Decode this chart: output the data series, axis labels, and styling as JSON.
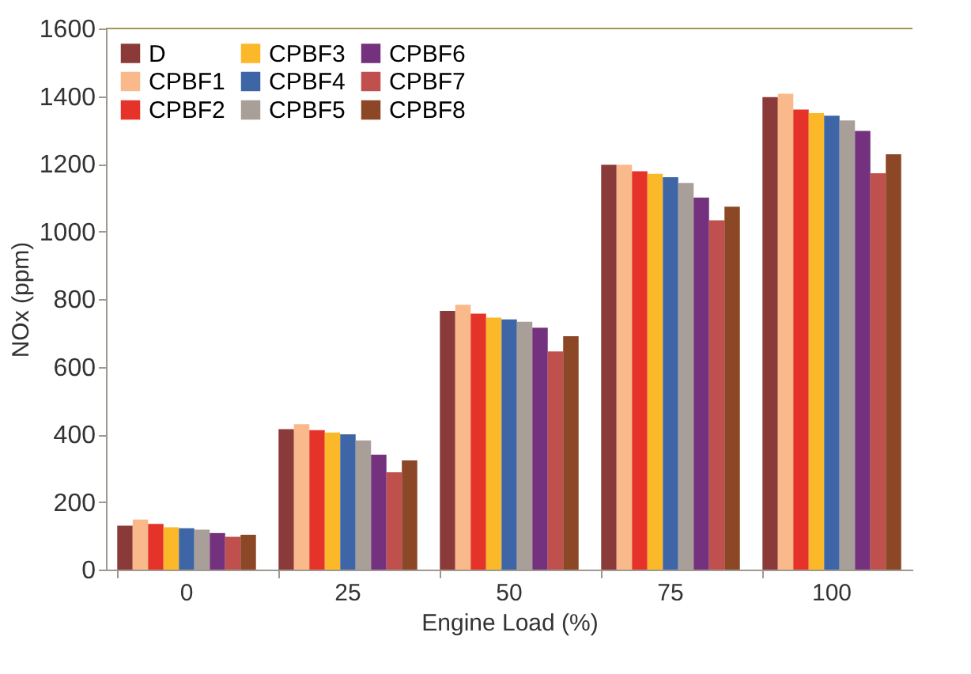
{
  "chart_data": {
    "type": "bar",
    "xlabel": "Engine Load (%)",
    "ylabel": "NOx (ppm)",
    "categories": [
      "0",
      "25",
      "50",
      "75",
      "100"
    ],
    "series": [
      {
        "name": "D",
        "color": "#8b3a3a",
        "values": [
          130,
          415,
          765,
          1197,
          1397
        ]
      },
      {
        "name": "CPBF1",
        "color": "#f9b98a",
        "values": [
          148,
          430,
          783,
          1197,
          1407
        ]
      },
      {
        "name": "CPBF2",
        "color": "#e5332a",
        "values": [
          135,
          412,
          757,
          1178,
          1360
        ]
      },
      {
        "name": "CPBF3",
        "color": "#fbb829",
        "values": [
          125,
          405,
          745,
          1170,
          1350
        ]
      },
      {
        "name": "CPBF4",
        "color": "#3e65a5",
        "values": [
          122,
          400,
          740,
          1160,
          1342
        ]
      },
      {
        "name": "CPBF5",
        "color": "#a89f99",
        "values": [
          118,
          382,
          733,
          1143,
          1328
        ]
      },
      {
        "name": "CPBF6",
        "color": "#74317e",
        "values": [
          108,
          340,
          715,
          1100,
          1297
        ]
      },
      {
        "name": "CPBF7",
        "color": "#bf504d",
        "values": [
          97,
          288,
          645,
          1033,
          1172
        ]
      },
      {
        "name": "CPBF8",
        "color": "#8b4726",
        "values": [
          103,
          323,
          690,
          1073,
          1228
        ]
      }
    ],
    "ylim": [
      0,
      1600
    ],
    "yticks": [
      0,
      200,
      400,
      600,
      800,
      1000,
      1200,
      1400,
      1600
    ],
    "grid": false,
    "legend": "top left"
  }
}
